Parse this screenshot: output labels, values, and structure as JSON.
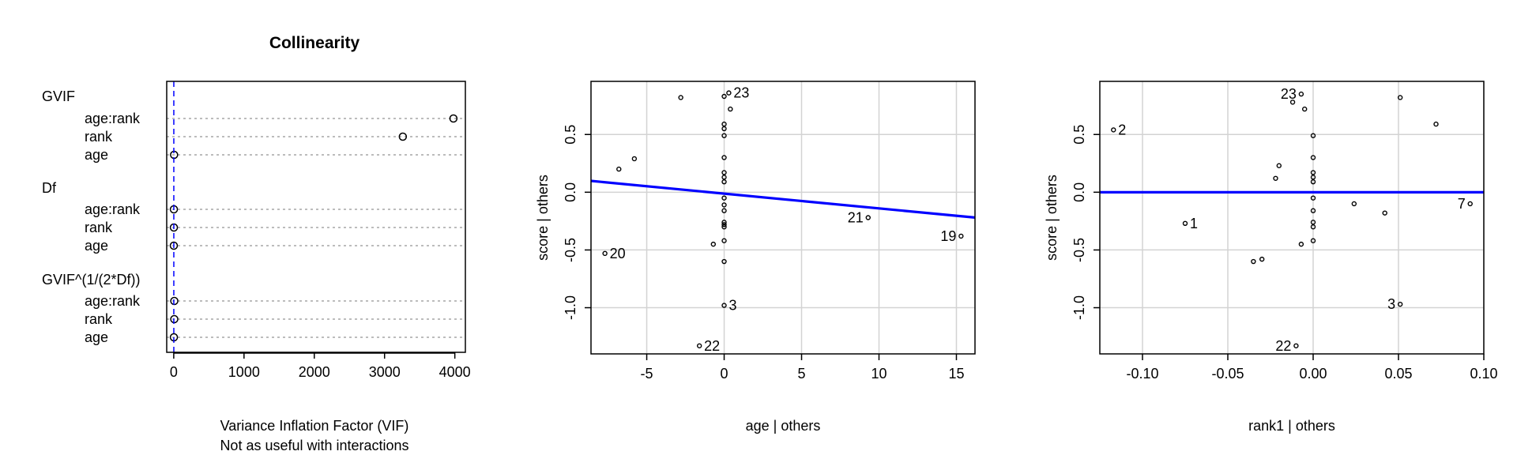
{
  "chart_data": [
    {
      "type": "dotplot",
      "title": "Collinearity",
      "xlabel": [
        "Variance Inflation Factor (VIF)",
        "Not as useful with interactions"
      ],
      "xlim": [
        -100,
        4150
      ],
      "xticks": [
        0,
        1000,
        2000,
        3000,
        4000
      ],
      "ref_line": 1,
      "groups": [
        {
          "name": "GVIF",
          "items": [
            {
              "label": "age:rank",
              "value": 3980
            },
            {
              "label": "rank",
              "value": 3260
            },
            {
              "label": "age",
              "value": 5
            }
          ]
        },
        {
          "name": "Df",
          "items": [
            {
              "label": "age:rank",
              "value": 2
            },
            {
              "label": "rank",
              "value": 2
            },
            {
              "label": "age",
              "value": 1
            }
          ]
        },
        {
          "name": "GVIF^(1/(2*Df))",
          "items": [
            {
              "label": "age:rank",
              "value": 7.9
            },
            {
              "label": "rank",
              "value": 7.6
            },
            {
              "label": "age",
              "value": 2.2
            }
          ]
        }
      ]
    },
    {
      "type": "scatter",
      "xlabel": "age | others",
      "ylabel": "score  | others",
      "xlim": [
        -8.6,
        16.2
      ],
      "ylim": [
        -1.4,
        0.96
      ],
      "xticks": [
        -5,
        0,
        5,
        10,
        15
      ],
      "yticks": [
        -1.0,
        -0.5,
        0.0,
        0.5
      ],
      "ytick_labels": [
        "-1.0",
        "-0.5",
        "0.0",
        "0.5"
      ],
      "fit_line": {
        "intercept": -0.012,
        "slope": -0.0128,
        "color": "#0000ff"
      },
      "points": [
        {
          "x": -2.8,
          "y": 0.82
        },
        {
          "x": 0.0,
          "y": 0.83
        },
        {
          "x": 0.3,
          "y": 0.86,
          "label": "23"
        },
        {
          "x": 0.4,
          "y": 0.72
        },
        {
          "x": 0.0,
          "y": 0.59
        },
        {
          "x": 0.0,
          "y": 0.55
        },
        {
          "x": 0.0,
          "y": 0.49
        },
        {
          "x": 0.0,
          "y": 0.3
        },
        {
          "x": 0.0,
          "y": 0.17
        },
        {
          "x": 0.0,
          "y": 0.13
        },
        {
          "x": 0.0,
          "y": 0.09
        },
        {
          "x": 0.0,
          "y": -0.05
        },
        {
          "x": 0.0,
          "y": -0.11
        },
        {
          "x": 0.0,
          "y": -0.16
        },
        {
          "x": 0.0,
          "y": -0.26
        },
        {
          "x": 0.0,
          "y": -0.28
        },
        {
          "x": 0.0,
          "y": -0.3
        },
        {
          "x": 0.0,
          "y": -0.42
        },
        {
          "x": -0.7,
          "y": -0.45
        },
        {
          "x": 0.0,
          "y": -0.6
        },
        {
          "x": -5.8,
          "y": 0.29
        },
        {
          "x": -6.8,
          "y": 0.2
        },
        {
          "x": -7.7,
          "y": -0.53,
          "label": "20"
        },
        {
          "x": 9.3,
          "y": -0.22,
          "label": "21",
          "label_side": "left"
        },
        {
          "x": 15.3,
          "y": -0.38,
          "label": "19",
          "label_side": "left"
        },
        {
          "x": 0.0,
          "y": -0.98,
          "label": "3"
        },
        {
          "x": -1.6,
          "y": -1.33,
          "label": "22"
        }
      ]
    },
    {
      "type": "scatter",
      "xlabel": "rank1 | others",
      "ylabel": "score  | others",
      "xlim": [
        -0.125,
        0.1
      ],
      "ylim": [
        -1.4,
        0.96
      ],
      "xticks": [
        -0.1,
        -0.05,
        0.0,
        0.05,
        0.1
      ],
      "xtick_labels": [
        "-0.10",
        "-0.05",
        "0.00",
        "0.05",
        "0.10"
      ],
      "yticks": [
        -1.0,
        -0.5,
        0.0,
        0.5
      ],
      "ytick_labels": [
        "-1.0",
        "-0.5",
        "0.0",
        "0.5"
      ],
      "fit_line": {
        "intercept": 0.0,
        "slope": 0.0,
        "color": "#0000ff"
      },
      "points": [
        {
          "x": -0.117,
          "y": 0.54,
          "label": "2"
        },
        {
          "x": -0.075,
          "y": -0.27,
          "label": "1"
        },
        {
          "x": -0.012,
          "y": 0.78
        },
        {
          "x": -0.007,
          "y": 0.85,
          "label": "23",
          "label_side": "left"
        },
        {
          "x": -0.005,
          "y": 0.72
        },
        {
          "x": 0.0,
          "y": 0.49
        },
        {
          "x": 0.0,
          "y": 0.3
        },
        {
          "x": 0.0,
          "y": 0.17
        },
        {
          "x": 0.0,
          "y": 0.13
        },
        {
          "x": 0.0,
          "y": 0.09
        },
        {
          "x": 0.0,
          "y": -0.05
        },
        {
          "x": 0.0,
          "y": -0.16
        },
        {
          "x": 0.0,
          "y": -0.26
        },
        {
          "x": 0.0,
          "y": -0.3
        },
        {
          "x": 0.0,
          "y": -0.42
        },
        {
          "x": -0.007,
          "y": -0.45
        },
        {
          "x": -0.02,
          "y": 0.23
        },
        {
          "x": -0.022,
          "y": 0.12
        },
        {
          "x": -0.03,
          "y": -0.58
        },
        {
          "x": -0.035,
          "y": -0.6
        },
        {
          "x": 0.024,
          "y": -0.1
        },
        {
          "x": 0.042,
          "y": -0.18
        },
        {
          "x": 0.051,
          "y": 0.82
        },
        {
          "x": 0.072,
          "y": 0.59
        },
        {
          "x": 0.092,
          "y": -0.1,
          "label": "7",
          "label_side": "left"
        },
        {
          "x": 0.051,
          "y": -0.97,
          "label": "3",
          "label_side": "left"
        },
        {
          "x": -0.01,
          "y": -1.33,
          "label": "22",
          "label_side": "left"
        }
      ]
    }
  ]
}
